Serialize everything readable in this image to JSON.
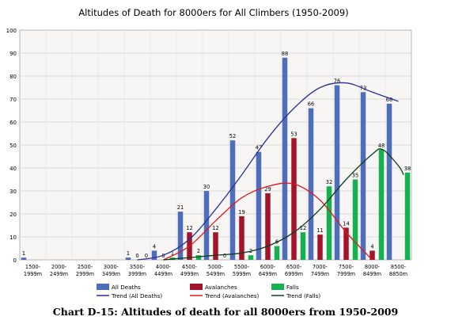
{
  "caption": "Chart D-15: Altitudes of death for all 8000ers from 1950-2009",
  "chart_data": {
    "type": "bar",
    "title": "Altitudes of Death for 8000ers for All Climbers (1950-2009)",
    "xlabel": "",
    "ylabel": "",
    "ylim": [
      0,
      100
    ],
    "yticks": [
      0,
      10,
      20,
      30,
      40,
      50,
      60,
      70,
      80,
      90,
      100
    ],
    "grid": true,
    "legend_position": "bottom",
    "categories": [
      [
        "1500-",
        "1999m"
      ],
      [
        "2000-",
        "2499m"
      ],
      [
        "2500-",
        "2999m"
      ],
      [
        "3000-",
        "3499m"
      ],
      [
        "3500-",
        "3999m"
      ],
      [
        "4000-",
        "4499m"
      ],
      [
        "4500-",
        "4999m"
      ],
      [
        "5000-",
        "5499m"
      ],
      [
        "5500-",
        "5999m"
      ],
      [
        "6000-",
        "6499m"
      ],
      [
        "6500-",
        "6999m"
      ],
      [
        "7000-",
        "7499m"
      ],
      [
        "7500-",
        "7999m"
      ],
      [
        "8000-",
        "8499m"
      ],
      [
        "8500-",
        "8850m"
      ]
    ],
    "series": [
      {
        "name": "All Deaths",
        "color": "#4f6db8",
        "values": [
          1,
          null,
          null,
          null,
          1,
          4,
          21,
          30,
          52,
          47,
          88,
          66,
          76,
          73,
          68
        ]
      },
      {
        "name": "Avalanches",
        "color": "#a3132a",
        "values": [
          null,
          null,
          null,
          null,
          0,
          0,
          12,
          12,
          19,
          29,
          53,
          11,
          14,
          4,
          null
        ]
      },
      {
        "name": "Falls",
        "color": "#15b04f",
        "values": [
          null,
          null,
          null,
          null,
          0,
          1,
          2,
          0,
          2,
          6,
          12,
          32,
          35,
          48,
          38
        ]
      }
    ],
    "trends": [
      {
        "name": "Trend (All Deaths)",
        "color": "#2a3191",
        "points": [
          [
            4,
            0
          ],
          [
            5,
            2
          ],
          [
            6,
            9
          ],
          [
            7,
            22
          ],
          [
            8,
            37
          ],
          [
            9,
            53
          ],
          [
            10,
            66
          ],
          [
            11,
            75
          ],
          [
            12,
            77
          ],
          [
            13,
            73
          ],
          [
            14,
            69
          ]
        ]
      },
      {
        "name": "Trend (Avalanches)",
        "color": "#e0171d",
        "points": [
          [
            5,
            0
          ],
          [
            6,
            6
          ],
          [
            7,
            17
          ],
          [
            8,
            27
          ],
          [
            9,
            32
          ],
          [
            10,
            33
          ],
          [
            11,
            26
          ],
          [
            12,
            12
          ],
          [
            13,
            0
          ]
        ]
      },
      {
        "name": "Trend (Falls)",
        "color": "#0c3d1c",
        "points": [
          [
            5,
            0
          ],
          [
            6,
            1
          ],
          [
            7,
            2
          ],
          [
            8,
            3
          ],
          [
            9,
            6
          ],
          [
            10,
            12
          ],
          [
            11,
            22
          ],
          [
            12,
            35
          ],
          [
            13,
            46
          ],
          [
            13.4,
            48
          ],
          [
            14,
            41
          ],
          [
            14.2,
            37
          ]
        ]
      }
    ]
  }
}
